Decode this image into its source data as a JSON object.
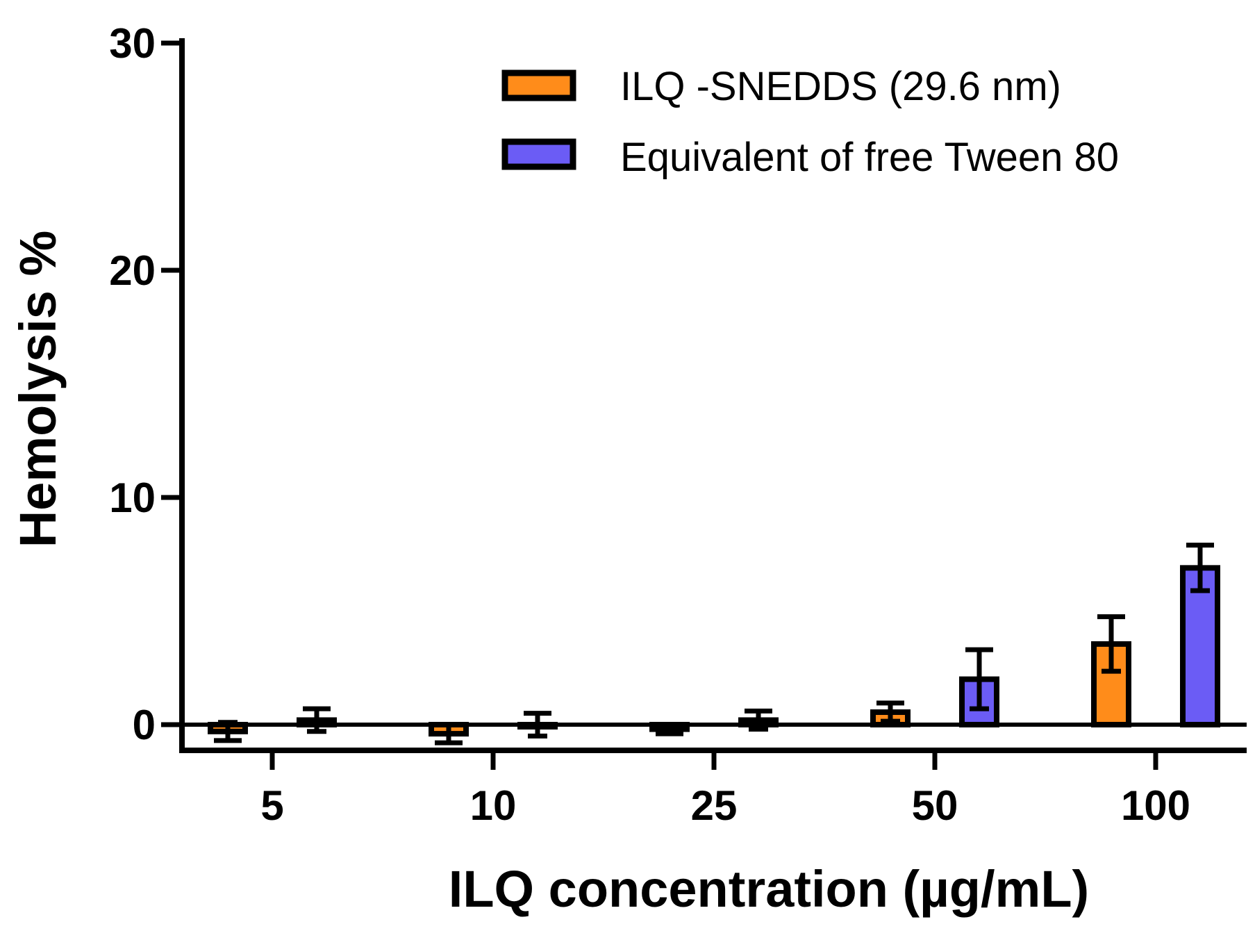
{
  "chart_data": {
    "type": "bar",
    "title": "",
    "xlabel": "ILQ concentration (µg/mL)",
    "ylabel": "Hemolysis %",
    "ylim": [
      -1,
      30
    ],
    "yticks": [
      0,
      10,
      20,
      30
    ],
    "categories": [
      "5",
      "10",
      "25",
      "50",
      "100"
    ],
    "legend_position": "top-right",
    "series": [
      {
        "name": "ILQ -SNEDDS (29.6 nm)",
        "color": "#ff8c1a",
        "values": [
          -0.3,
          -0.4,
          -0.2,
          0.55,
          3.55
        ],
        "errors": [
          0.4,
          0.4,
          0.2,
          0.4,
          1.2
        ]
      },
      {
        "name": "Equivalent of free Tween 80",
        "color": "#6b5cf5",
        "values": [
          0.2,
          0.0,
          0.2,
          2.0,
          6.9
        ],
        "errors": [
          0.5,
          0.5,
          0.4,
          1.3,
          1.0
        ]
      }
    ]
  }
}
